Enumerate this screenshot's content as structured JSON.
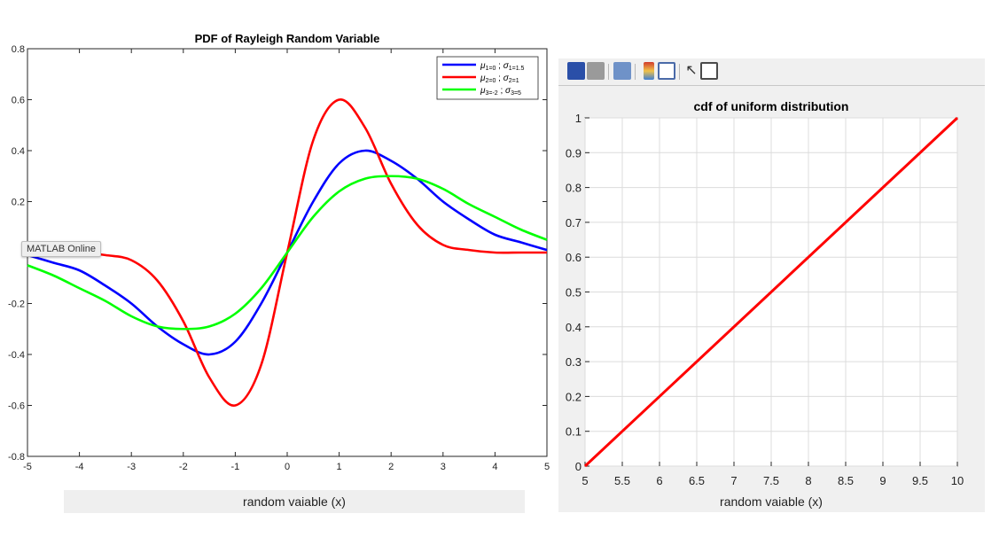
{
  "tooltip": "MATLAB Online",
  "chart_data": [
    {
      "type": "line",
      "title": "PDF of Rayleigh Random Variable",
      "xlabel": "random vaiable (x)",
      "ylabel": "",
      "xlim": [
        -5,
        5
      ],
      "ylim": [
        -0.8,
        0.8
      ],
      "xticks": [
        -5,
        -4,
        -3,
        -2,
        -1,
        0,
        1,
        2,
        3,
        4,
        5
      ],
      "yticks": [
        -0.8,
        -0.6,
        -0.4,
        -0.2,
        0,
        0.2,
        0.4,
        0.6,
        0.8
      ],
      "ytick_labels": [
        "-0.8",
        "-0.6",
        "-0.4",
        "-0.2",
        "",
        "0.2",
        "0.4",
        "0.6",
        "0.8"
      ],
      "grid": false,
      "legend_position": "top-right",
      "series": [
        {
          "name": "μ1=0 ; σ1=1.5",
          "mu_label": "μ",
          "mu_sub": "1=0",
          "sigma_label": "σ",
          "sigma_sub": "1=1.5",
          "color": "#0000ff",
          "x": [
            -5,
            -4.5,
            -4,
            -3.5,
            -3,
            -2.5,
            -2,
            -1.5,
            -1,
            -0.5,
            0,
            0.5,
            1,
            1.5,
            2,
            2.5,
            3,
            3.5,
            4,
            4.5,
            5
          ],
          "y": [
            -0.01,
            -0.04,
            -0.07,
            -0.13,
            -0.2,
            -0.29,
            -0.36,
            -0.4,
            -0.35,
            -0.2,
            0,
            0.2,
            0.35,
            0.4,
            0.36,
            0.29,
            0.2,
            0.13,
            0.07,
            0.04,
            0.01
          ]
        },
        {
          "name": "μ2=0 ; σ2=1",
          "mu_label": "μ",
          "mu_sub": "2=0",
          "sigma_label": "σ",
          "sigma_sub": "2=1",
          "color": "#ff0000",
          "x": [
            -5,
            -4.5,
            -4,
            -3.5,
            -3,
            -2.5,
            -2,
            -1.5,
            -1,
            -0.5,
            0,
            0.5,
            1,
            1.5,
            2,
            2.5,
            3,
            3.5,
            4,
            4.5,
            5
          ],
          "y": [
            0,
            0,
            0,
            -0.01,
            -0.03,
            -0.11,
            -0.27,
            -0.49,
            -0.6,
            -0.44,
            0,
            0.44,
            0.6,
            0.49,
            0.27,
            0.11,
            0.03,
            0.01,
            0,
            0,
            0
          ]
        },
        {
          "name": "μ3=-2 ; σ3=5",
          "mu_label": "μ",
          "mu_sub": "3=-2",
          "sigma_label": "σ",
          "sigma_sub": "3=5",
          "color": "#00ff00",
          "x": [
            -5,
            -4.5,
            -4,
            -3.5,
            -3,
            -2.5,
            -2,
            -1.5,
            -1,
            -0.5,
            0,
            0.5,
            1,
            1.5,
            2,
            2.5,
            3,
            3.5,
            4,
            4.5,
            5
          ],
          "y": [
            -0.05,
            -0.09,
            -0.14,
            -0.19,
            -0.25,
            -0.29,
            -0.3,
            -0.29,
            -0.24,
            -0.14,
            0,
            0.14,
            0.24,
            0.29,
            0.3,
            0.29,
            0.25,
            0.19,
            0.14,
            0.09,
            0.05
          ]
        }
      ]
    },
    {
      "type": "line",
      "title": "cdf of uniform distribution",
      "xlabel": "random vaiable (x)",
      "ylabel": "",
      "xlim": [
        5,
        10
      ],
      "ylim": [
        0,
        1
      ],
      "xticks": [
        5,
        5.5,
        6,
        6.5,
        7,
        7.5,
        8,
        8.5,
        9,
        9.5,
        10
      ],
      "xtick_labels": [
        "5",
        "5.5",
        "6",
        "6.5",
        "7",
        "7.5",
        "8",
        "8.5",
        "9",
        "9.5",
        "10"
      ],
      "yticks": [
        0,
        0.1,
        0.2,
        0.3,
        0.4,
        0.5,
        0.6,
        0.7,
        0.8,
        0.9,
        1
      ],
      "ytick_labels": [
        "0",
        "0.1",
        "0.2",
        "0.3",
        "0.4",
        "0.5",
        "0.6",
        "0.7",
        "0.8",
        "0.9",
        "1"
      ],
      "grid": true,
      "series": [
        {
          "color": "#ff0000",
          "x": [
            5,
            10
          ],
          "y": [
            0,
            1
          ]
        }
      ]
    }
  ],
  "toolbar": {
    "buttons": [
      {
        "icon": "save-icon",
        "color": "#2a4fa8"
      },
      {
        "icon": "print-icon",
        "color": "#777777"
      },
      {
        "icon": "print-preview-icon",
        "color": "#5a7fb8"
      },
      {
        "icon": "colorbar-icon",
        "color": "#e08a2e"
      },
      {
        "icon": "legend-icon",
        "color": "#4a6aa8"
      },
      {
        "icon": "pointer-icon",
        "color": "#333333"
      },
      {
        "icon": "property-editor-icon",
        "color": "#4a4a4a"
      }
    ]
  }
}
